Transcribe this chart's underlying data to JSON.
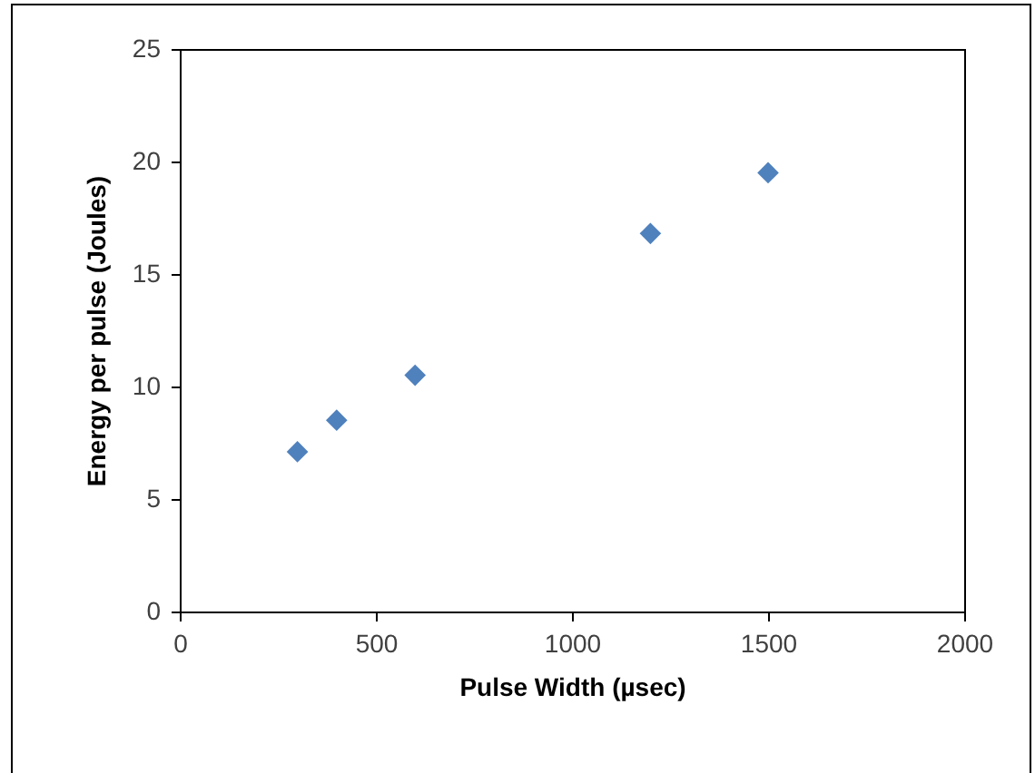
{
  "chart_data": {
    "type": "scatter",
    "xlabel": "Pulse Width (µsec)",
    "ylabel": "Energy per pulse (Joules)",
    "x": [
      300,
      400,
      600,
      1200,
      1500
    ],
    "series": [
      {
        "color": "#4f81bd",
        "values": [
          7.1,
          8.5,
          10.5,
          16.8,
          19.5
        ]
      }
    ],
    "xlim": [
      0,
      2000
    ],
    "xticks": [
      0,
      500,
      1000,
      1500,
      2000
    ],
    "ylim": [
      0,
      25
    ],
    "yticks": [
      0,
      5,
      10,
      15,
      20,
      25
    ],
    "grid": false,
    "marker": "diamond"
  }
}
